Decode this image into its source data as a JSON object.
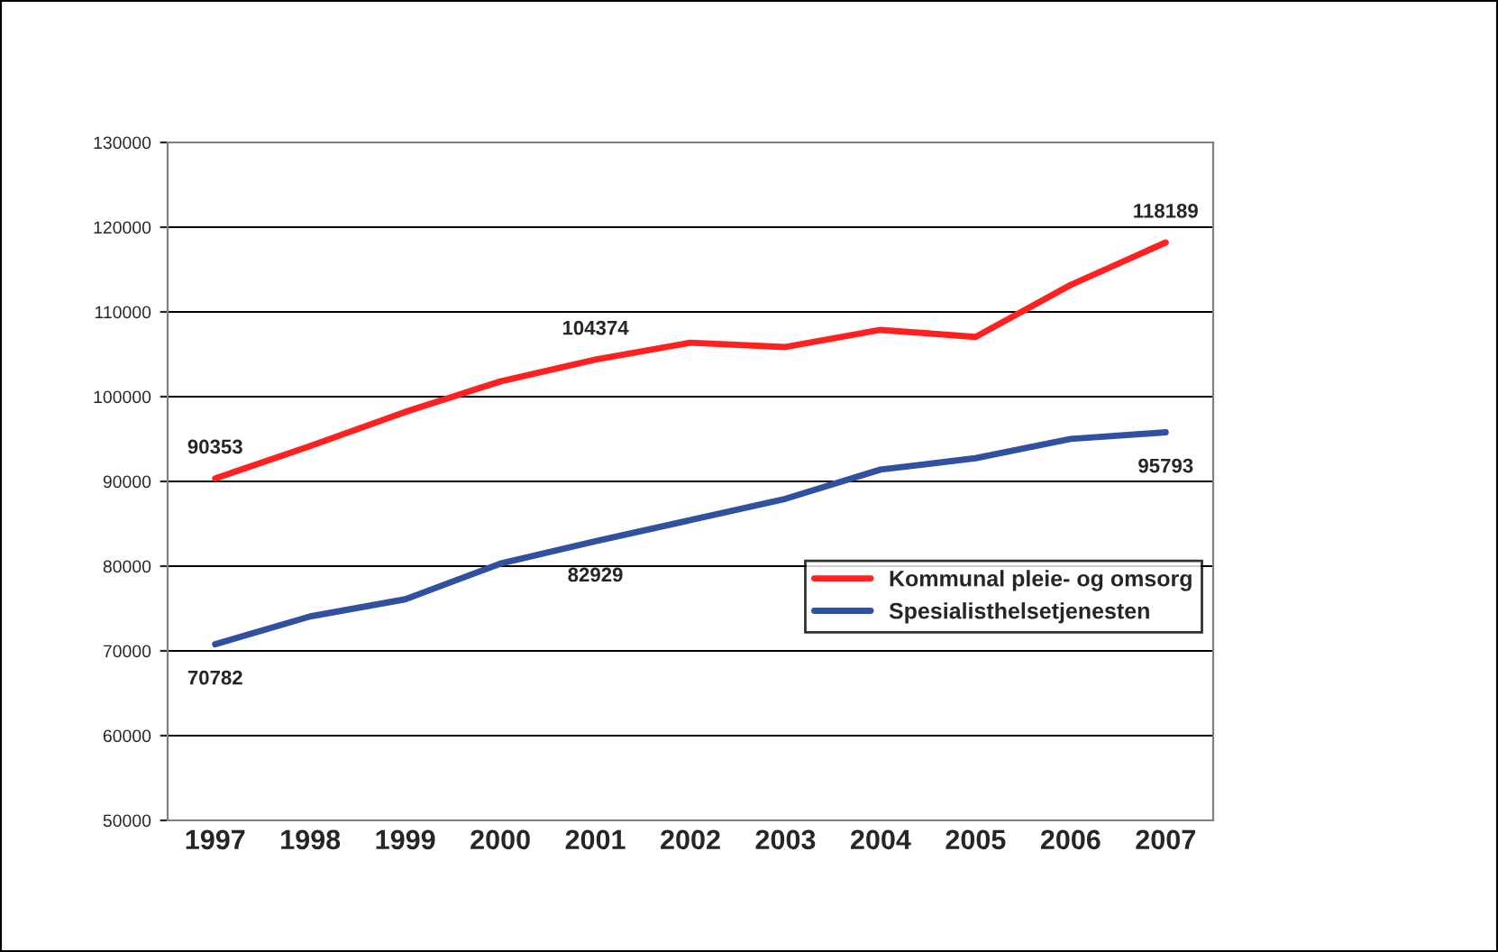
{
  "chart_data": {
    "type": "line",
    "categories": [
      "1997",
      "1998",
      "1999",
      "2000",
      "2001",
      "2002",
      "2003",
      "2004",
      "2005",
      "2006",
      "2007"
    ],
    "series": [
      {
        "name": "Kommunal pleie- og omsorg",
        "color": "#ff2020",
        "values": [
          90353,
          94170,
          98200,
          101800,
          104374,
          106370,
          105860,
          107880,
          107040,
          113180,
          118189
        ],
        "value_labels": [
          "90353",
          null,
          null,
          null,
          "104374",
          null,
          null,
          null,
          null,
          null,
          "118189"
        ]
      },
      {
        "name": "Spesialisthelsetjenesten",
        "color": "#3050a0",
        "values": [
          70782,
          74070,
          76090,
          80300,
          82929,
          85430,
          87950,
          91400,
          92740,
          95010,
          95793
        ],
        "value_labels": [
          "70782",
          null,
          null,
          null,
          "82929",
          null,
          null,
          null,
          null,
          null,
          "95793"
        ]
      }
    ],
    "ylim": [
      50000,
      130000
    ],
    "yticks": [
      50000,
      60000,
      70000,
      80000,
      90000,
      100000,
      110000,
      120000,
      130000
    ],
    "grid": "y",
    "legend": "right",
    "marker": "none",
    "line_style": "solid"
  }
}
